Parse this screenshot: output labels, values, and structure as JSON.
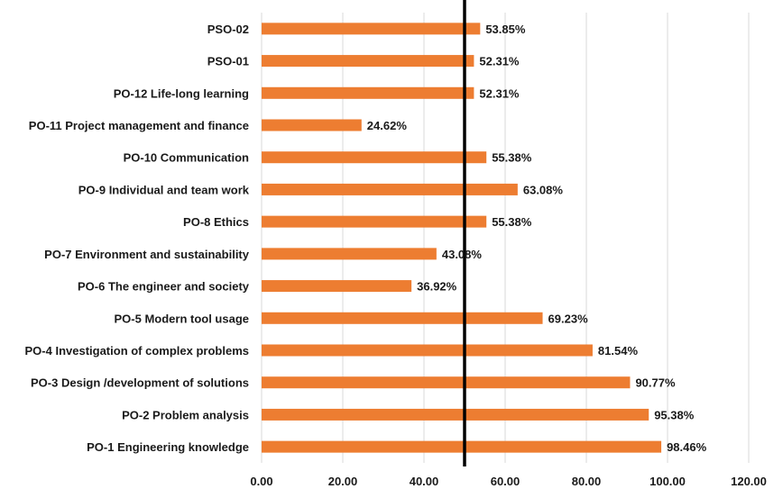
{
  "chart_data": {
    "type": "bar",
    "orientation": "horizontal",
    "categories": [
      "PSO-02",
      "PSO-01",
      "PO-12 Life-long learning",
      "PO-11 Project management and finance",
      "PO-10 Communication",
      "PO-9 Individual and team work",
      "PO-8 Ethics",
      "PO-7 Environment and sustainability",
      "PO-6 The engineer and society",
      "PO-5 Modern tool usage",
      "PO-4 Investigation of complex problems",
      "PO-3 Design /development of solutions",
      "PO-2 Problem analysis",
      "PO-1 Engineering knowledge"
    ],
    "values": [
      53.85,
      52.31,
      52.31,
      24.62,
      55.38,
      63.08,
      55.38,
      43.08,
      36.92,
      69.23,
      81.54,
      90.77,
      95.38,
      98.46
    ],
    "data_labels": [
      "53.85%",
      "52.31%",
      "52.31%",
      "24.62%",
      "55.38%",
      "63.08%",
      "55.38%",
      "43.08%",
      "36.92%",
      "69.23%",
      "81.54%",
      "90.77%",
      "95.38%",
      "98.46%"
    ],
    "xlim": [
      0,
      120
    ],
    "x_ticks": [
      0,
      20,
      40,
      60,
      80,
      100,
      120
    ],
    "x_tick_labels": [
      "0.00",
      "20.00",
      "40.00",
      "60.00",
      "80.00",
      "100.00",
      "120.00"
    ],
    "reference_line": {
      "value": 50,
      "color": "#000000"
    },
    "grid": "vertical",
    "bar_color": "#ed7d31",
    "title": "",
    "xlabel": "",
    "ylabel": ""
  }
}
